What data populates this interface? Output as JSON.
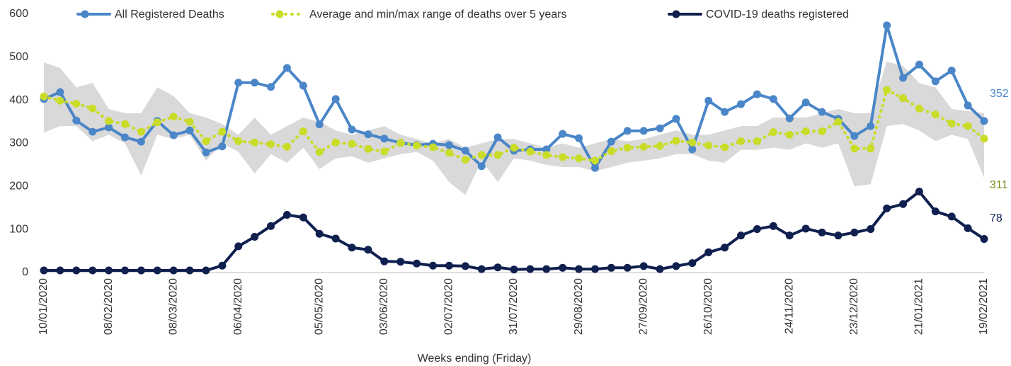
{
  "chart_data": {
    "type": "line",
    "x_label": "Weeks ending (Friday)",
    "categories": [
      "10/01/2020",
      null,
      null,
      null,
      "08/02/2020",
      null,
      null,
      null,
      "08/03/2020",
      null,
      null,
      null,
      "06/04/2020",
      null,
      null,
      null,
      null,
      "05/05/2020",
      null,
      null,
      null,
      "03/06/2020",
      null,
      null,
      null,
      "02/07/2020",
      null,
      null,
      null,
      "31/07/2020",
      null,
      null,
      null,
      "29/08/2020",
      null,
      null,
      null,
      "27/09/2020",
      null,
      null,
      null,
      "26/10/2020",
      null,
      null,
      null,
      null,
      "24/11/2020",
      null,
      null,
      null,
      "23/12/2020",
      null,
      null,
      null,
      "21/01/2021",
      null,
      null,
      null,
      "19/02/2021"
    ],
    "ylim": [
      0,
      600
    ],
    "yticks": [
      0,
      100,
      200,
      300,
      400,
      500,
      600
    ],
    "grid": false,
    "series": [
      {
        "name": "All Registered Deaths",
        "color": "#4a86c8",
        "values": [
          403,
          419,
          353,
          327,
          337,
          314,
          304,
          352,
          319,
          330,
          279,
          293,
          441,
          441,
          431,
          475,
          434,
          344,
          403,
          332,
          321,
          311,
          301,
          296,
          299,
          296,
          283,
          247,
          314,
          283,
          286,
          286,
          322,
          312,
          243,
          304,
          329,
          329,
          335,
          357,
          286,
          399,
          373,
          391,
          414,
          403,
          358,
          395,
          373,
          357,
          317,
          340,
          574,
          452,
          483,
          444,
          469,
          388,
          352
        ]
      },
      {
        "name": "Average and min/max range of deaths over 5 years",
        "color": "#c8dc28",
        "range_color": "#d9d9d9",
        "values": [
          409,
          399,
          392,
          381,
          352,
          345,
          327,
          349,
          362,
          350,
          305,
          327,
          305,
          302,
          298,
          292,
          328,
          280,
          302,
          299,
          287,
          281,
          301,
          295,
          291,
          278,
          262,
          273,
          273,
          290,
          281,
          273,
          268,
          265,
          260,
          282,
          290,
          292,
          294,
          306,
          302,
          295,
          291,
          305,
          305,
          326,
          320,
          328,
          328,
          350,
          288,
          288,
          424,
          405,
          381,
          367,
          346,
          340,
          311
        ],
        "max": [
          488,
          475,
          430,
          440,
          380,
          370,
          370,
          430,
          410,
          370,
          360,
          345,
          320,
          360,
          320,
          340,
          360,
          350,
          330,
          320,
          330,
          340,
          320,
          310,
          300,
          310,
          290,
          300,
          310,
          310,
          300,
          290,
          300,
          290,
          300,
          310,
          305,
          310,
          320,
          330,
          320,
          320,
          330,
          340,
          340,
          360,
          360,
          360,
          370,
          380,
          370,
          370,
          490,
          480,
          440,
          430,
          380,
          375,
          370
        ],
        "min": [
          325,
          340,
          340,
          305,
          320,
          300,
          225,
          320,
          310,
          320,
          260,
          300,
          280,
          230,
          275,
          255,
          290,
          240,
          265,
          270,
          255,
          265,
          275,
          280,
          260,
          210,
          180,
          260,
          210,
          265,
          260,
          250,
          245,
          245,
          235,
          245,
          255,
          260,
          265,
          275,
          275,
          260,
          255,
          285,
          285,
          290,
          285,
          300,
          290,
          300,
          200,
          205,
          340,
          345,
          330,
          305,
          320,
          310,
          220
        ]
      },
      {
        "name": "COVID-19 deaths registered",
        "color": "#0f1f4e",
        "values": [
          5,
          5,
          5,
          5,
          5,
          5,
          5,
          5,
          5,
          5,
          5,
          16,
          61,
          83,
          108,
          134,
          128,
          90,
          79,
          58,
          53,
          26,
          25,
          21,
          16,
          16,
          15,
          8,
          12,
          7,
          8,
          8,
          11,
          8,
          8,
          11,
          11,
          15,
          8,
          15,
          22,
          47,
          58,
          86,
          101,
          108,
          86,
          102,
          93,
          86,
          93,
          101,
          149,
          159,
          188,
          142,
          130,
          103,
          78
        ]
      }
    ]
  }
}
